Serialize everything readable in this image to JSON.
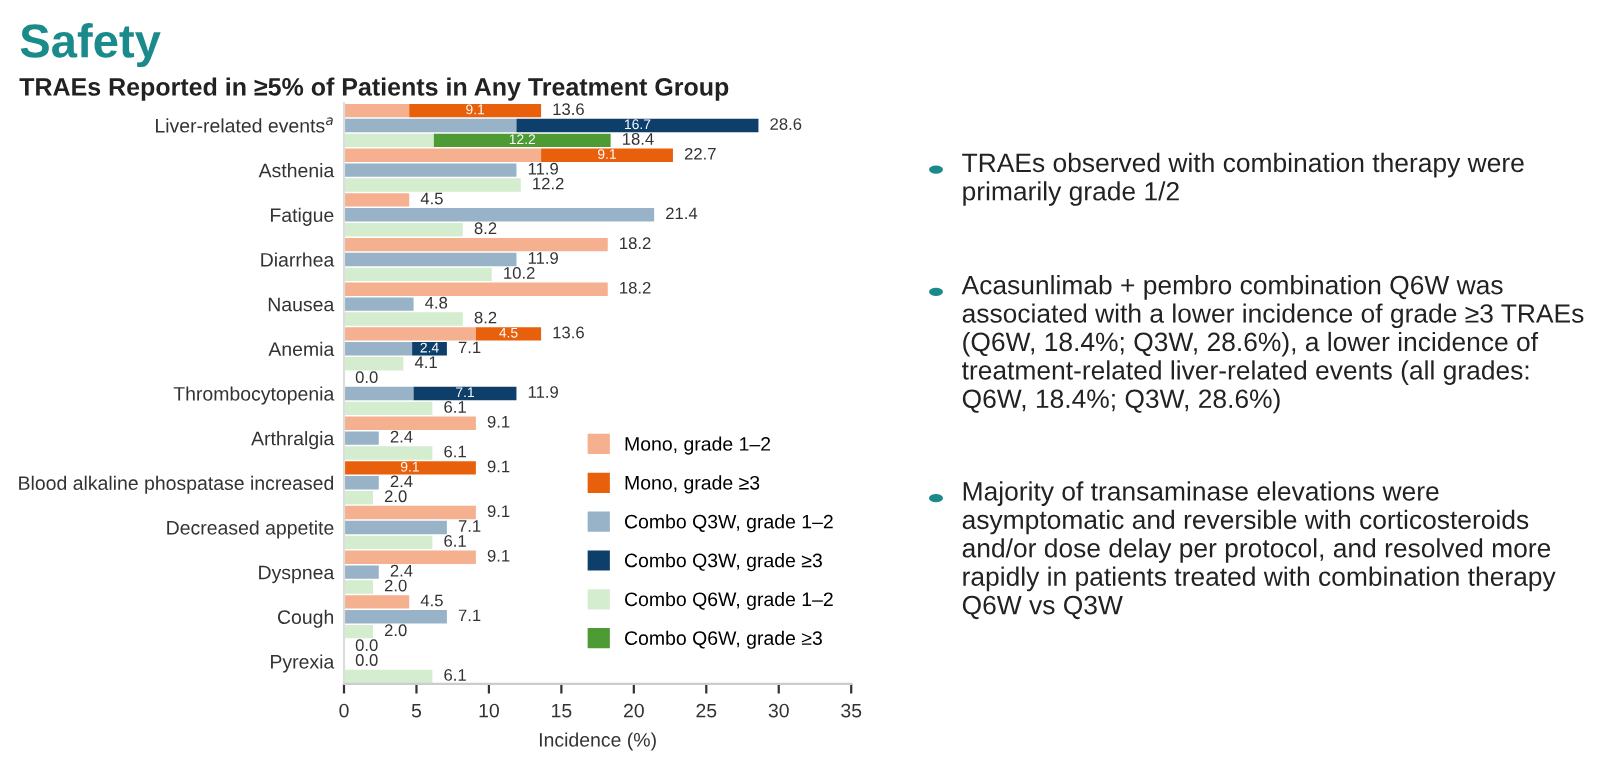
{
  "chart_data": {
    "type": "bar",
    "orientation": "horizontal",
    "stacked": true,
    "title": "Safety",
    "subtitle": "TRAEs Reported in ≥5% of Patients in Any Treatment Group",
    "xlabel": "Incidence (%)",
    "categories": [
      null,
      "Liver-related events$^{a}$",
      null,
      null,
      "Asthenia",
      null,
      null,
      "Fatigue",
      null,
      null,
      "Diarrhea",
      null,
      null,
      "Nausea",
      null,
      null,
      "Anemia",
      null,
      null,
      "Thrombocytopenia",
      null,
      null,
      "Arthralgia",
      null,
      null,
      "Blood alkaline phospatase increased",
      null,
      null,
      "Decreased appetite",
      null,
      null,
      "Dyspnea",
      null,
      null,
      "Cough",
      null,
      null,
      "Pyrexia",
      null
    ],
    "series": [
      {
        "name": "Mono, grade 1–2",
        "color": "#f4b08f",
        "values": [
          4.5,
          null,
          null,
          13.6,
          null,
          null,
          4.5,
          null,
          null,
          18.2,
          null,
          null,
          18.2,
          null,
          null,
          9.1,
          null,
          null,
          0.0,
          null,
          null,
          9.1,
          null,
          null,
          0.0,
          null,
          null,
          9.1,
          null,
          null,
          9.1,
          null,
          null,
          4.5,
          null,
          null,
          0.0,
          null,
          null
        ]
      },
      {
        "name": "Mono, grade ≥3",
        "color": "#e8600c",
        "values": [
          9.1,
          null,
          null,
          9.1,
          null,
          null,
          null,
          null,
          null,
          null,
          null,
          null,
          null,
          null,
          null,
          4.5,
          null,
          null,
          null,
          null,
          null,
          null,
          null,
          null,
          9.1,
          null,
          null,
          null,
          null,
          null,
          null,
          null,
          null,
          null,
          null,
          null,
          null,
          null,
          null
        ],
        "value_labels": [
          "9.1",
          null,
          null,
          "9.1",
          null,
          null,
          null,
          null,
          null,
          null,
          null,
          null,
          null,
          null,
          null,
          "4.5",
          null,
          null,
          null,
          null,
          null,
          null,
          null,
          null,
          "9.1",
          null,
          null,
          null,
          null,
          null,
          null,
          null,
          null,
          null,
          null,
          null,
          null,
          null,
          null
        ]
      },
      {
        "name": "Combo Q3W, grade 1–2",
        "color": "#98b3c8",
        "values": [
          null,
          11.9,
          null,
          null,
          11.9,
          null,
          null,
          21.4,
          null,
          null,
          11.9,
          null,
          null,
          4.8,
          null,
          null,
          4.7,
          null,
          null,
          4.8,
          null,
          null,
          2.4,
          null,
          null,
          2.4,
          null,
          null,
          7.1,
          null,
          null,
          2.4,
          null,
          null,
          7.1,
          null,
          null,
          0.0,
          null
        ]
      },
      {
        "name": "Combo Q3W, grade ≥3",
        "color": "#0e3f6b",
        "values": [
          null,
          16.7,
          null,
          null,
          null,
          null,
          null,
          null,
          null,
          null,
          null,
          null,
          null,
          null,
          null,
          null,
          2.4,
          null,
          null,
          7.1,
          null,
          null,
          null,
          null,
          null,
          null,
          null,
          null,
          null,
          null,
          null,
          null,
          null,
          null,
          null,
          null,
          null,
          null,
          null
        ],
        "value_labels": [
          null,
          "16.7",
          null,
          null,
          null,
          null,
          null,
          null,
          null,
          null,
          null,
          null,
          null,
          null,
          null,
          null,
          "2.4",
          null,
          null,
          "7.1",
          null,
          null,
          null,
          null,
          null,
          null,
          null,
          null,
          null,
          null,
          null,
          null,
          null,
          null,
          null,
          null,
          null,
          null,
          null
        ]
      },
      {
        "name": "Combo Q6W, grade 1–2",
        "color": "#d5edcf",
        "values": [
          null,
          null,
          6.2,
          null,
          null,
          12.2,
          null,
          null,
          8.2,
          null,
          null,
          10.2,
          null,
          null,
          8.2,
          null,
          null,
          4.1,
          null,
          null,
          6.1,
          null,
          null,
          6.1,
          null,
          null,
          2.0,
          null,
          null,
          6.1,
          null,
          null,
          2.0,
          null,
          null,
          2.0,
          null,
          null,
          6.1
        ]
      },
      {
        "name": "Combo Q6W, grade ≥3",
        "color": "#4e9a35",
        "values": [
          null,
          null,
          12.2,
          null,
          null,
          null,
          null,
          null,
          null,
          null,
          null,
          null,
          null,
          null,
          null,
          null,
          null,
          null,
          null,
          null,
          null,
          null,
          null,
          null,
          null,
          null,
          null,
          null,
          null,
          null,
          null,
          null,
          null,
          null,
          null,
          null,
          null,
          null,
          null
        ],
        "value_labels": [
          null,
          null,
          "12.2",
          null,
          null,
          null,
          null,
          null,
          null,
          null,
          null,
          null,
          null,
          null,
          null,
          null,
          null,
          null,
          null,
          null,
          null,
          null,
          null,
          null,
          null,
          null,
          null,
          null,
          null,
          null,
          null,
          null,
          null,
          null,
          null,
          null,
          null,
          null,
          null
        ]
      }
    ],
    "totals": [
      "13.6",
      "28.6",
      "18.4",
      "22.7",
      "11.9",
      "12.2",
      "4.5",
      "21.4",
      "8.2",
      "18.2",
      "11.9",
      "10.2",
      "18.2",
      "4.8",
      "8.2",
      "13.6",
      "7.1",
      "4.1",
      "0.0",
      "11.9",
      "6.1",
      "9.1",
      "2.4",
      "6.1",
      "9.1",
      "2.4",
      "2.0",
      "9.1",
      "7.1",
      "6.1",
      "9.1",
      "2.4",
      "2.0",
      "4.5",
      "7.1",
      "2.0",
      "0.0",
      "0.0",
      "6.1"
    ],
    "xlim": [
      0,
      35
    ],
    "xticks": [
      0,
      5,
      10,
      15,
      20,
      25,
      30,
      35
    ],
    "legend": "bottom right",
    "grid": false,
    "annotations": [
      "TRAEs observed with combination therapy were primarily grade 1/2",
      "Acasunlimab + pembro combination Q6W was associated with a lower incidence of grade ≥3 TRAEs (Q6W, 18.4%; Q3W, 28.6%), a lower incidence of treatment-related liver-related events (all grades: Q6W, 18.4%; Q3W, 28.6%)",
      "Majority of transaminase elevations were asymptomatic and reversible with corticosteroids and/or dose delay per protocol, and resolved more rapidly in patients treated with combination therapy Q6W vs Q3W"
    ]
  }
}
